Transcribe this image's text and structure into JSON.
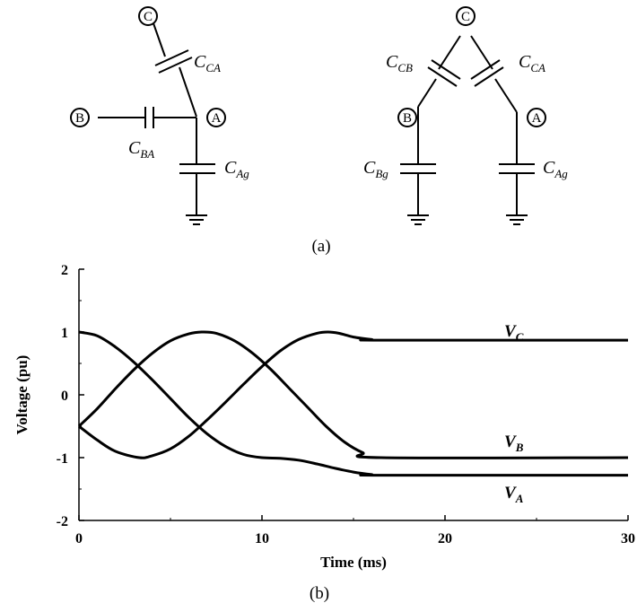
{
  "diagram": {
    "left_circuit": {
      "nodes": {
        "a": "A",
        "b": "B",
        "c": "C"
      },
      "capacitors": {
        "ca": {
          "main": "C",
          "sub": "CA"
        },
        "ba": {
          "main": "C",
          "sub": "BA"
        },
        "ag": {
          "main": "C",
          "sub": "Ag"
        }
      }
    },
    "right_circuit": {
      "nodes": {
        "a": "A",
        "b": "B",
        "c": "C"
      },
      "capacitors": {
        "cb": {
          "main": "C",
          "sub": "CB"
        },
        "ca": {
          "main": "C",
          "sub": "CA"
        },
        "bg": {
          "main": "C",
          "sub": "Bg"
        },
        "ag": {
          "main": "C",
          "sub": "Ag"
        }
      }
    },
    "label": "(a)"
  },
  "chart_label": "(b)",
  "chart_data": {
    "type": "line",
    "xlabel": "Time (ms)",
    "ylabel": "Voltage (pu)",
    "xlim": [
      0,
      30
    ],
    "ylim": [
      -2,
      2
    ],
    "xticks": [
      "0",
      "10",
      "20",
      "30"
    ],
    "yticks": [
      "2",
      "1",
      "0",
      "-1",
      "-2"
    ],
    "grid": false,
    "series": [
      {
        "name": "V",
        "sub": "C",
        "points": [
          [
            0,
            -0.5
          ],
          [
            1,
            -0.22
          ],
          [
            2,
            0.1
          ],
          [
            3,
            0.4
          ],
          [
            4,
            0.66
          ],
          [
            5,
            0.86
          ],
          [
            6,
            0.97
          ],
          [
            6.7,
            1.0
          ],
          [
            7.5,
            0.98
          ],
          [
            8.5,
            0.86
          ],
          [
            9.5,
            0.66
          ],
          [
            10.5,
            0.4
          ],
          [
            11.5,
            0.1
          ],
          [
            12.5,
            -0.2
          ],
          [
            13.5,
            -0.5
          ],
          [
            14.5,
            -0.75
          ],
          [
            15.5,
            -0.92
          ],
          [
            16.5,
            -1.0
          ],
          [
            30,
            -1.0
          ]
        ]
      },
      {
        "name": "V",
        "sub": "B",
        "points": [
          [
            0,
            -0.5
          ],
          [
            1,
            -0.72
          ],
          [
            2,
            -0.9
          ],
          [
            3.3,
            -1.0
          ],
          [
            4,
            -0.97
          ],
          [
            5,
            -0.86
          ],
          [
            6,
            -0.66
          ],
          [
            7,
            -0.4
          ],
          [
            8,
            -0.12
          ],
          [
            9,
            0.17
          ],
          [
            10,
            0.45
          ],
          [
            11,
            0.7
          ],
          [
            12,
            0.88
          ],
          [
            13,
            0.98
          ],
          [
            13.6,
            1.0
          ],
          [
            14.2,
            0.98
          ],
          [
            15,
            0.92
          ],
          [
            16,
            0.88
          ],
          [
            16.5,
            0.87
          ],
          [
            30,
            0.87
          ]
        ]
      },
      {
        "name": "V",
        "sub": "A",
        "points": [
          [
            0,
            1.0
          ],
          [
            1,
            0.94
          ],
          [
            2,
            0.76
          ],
          [
            3,
            0.52
          ],
          [
            4,
            0.24
          ],
          [
            5,
            -0.06
          ],
          [
            6,
            -0.36
          ],
          [
            7,
            -0.62
          ],
          [
            8,
            -0.82
          ],
          [
            9,
            -0.95
          ],
          [
            10,
            -1.0
          ],
          [
            11,
            -1.01
          ],
          [
            12,
            -1.04
          ],
          [
            13,
            -1.1
          ],
          [
            14,
            -1.17
          ],
          [
            15,
            -1.23
          ],
          [
            16,
            -1.27
          ],
          [
            16.5,
            -1.28
          ],
          [
            30,
            -1.28
          ]
        ]
      }
    ],
    "series_labels_order": [
      "V_C (upper)",
      "V_B (middle)",
      "V_A (lower)"
    ]
  }
}
